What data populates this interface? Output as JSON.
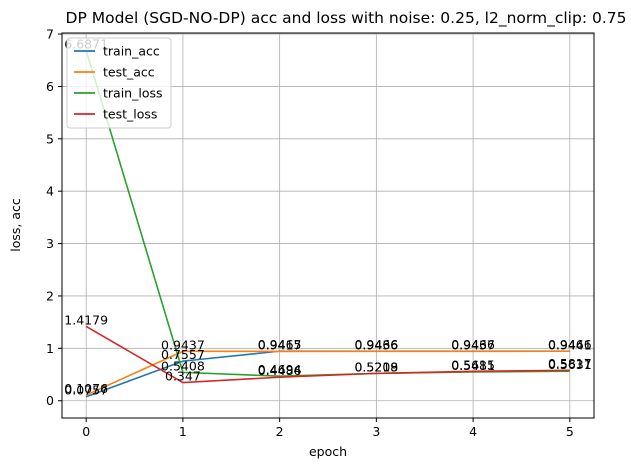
{
  "chart_data": {
    "type": "line",
    "title": "DP Model (SGD-NO-DP) acc and loss with noise: 0.25, l2_norm_clip: 0.75",
    "xlabel": "epoch",
    "ylabel": "loss, acc",
    "x": [
      0,
      1,
      2,
      3,
      4,
      5
    ],
    "xlim": [
      -0.25,
      5.25
    ],
    "ylim": [
      -0.33,
      7.02
    ],
    "xticks": [
      0,
      1,
      2,
      3,
      4,
      5
    ],
    "yticks": [
      0,
      1,
      2,
      3,
      4,
      5,
      6,
      7
    ],
    "grid": true,
    "legend_position": "top-left",
    "series": [
      {
        "name": "train_acc",
        "color": "#1f77b4",
        "values": [
          0.0757,
          0.7557,
          0.9465,
          0.9466,
          0.9466,
          0.9466
        ],
        "labels": [
          "0.0757",
          "0.7557",
          "0.9465",
          "0.9466",
          "0.9466",
          "0.9466"
        ]
      },
      {
        "name": "test_acc",
        "color": "#ff7f0e",
        "values": [
          0.1076,
          0.9437,
          0.9417,
          0.9436,
          0.9437,
          0.9441
        ],
        "labels": [
          "0.1076",
          "0.9437",
          "0.9417",
          "0.9436",
          "0.9437",
          "0.9441"
        ]
      },
      {
        "name": "train_loss",
        "color": "#2ca02c",
        "values": [
          6.6871,
          0.5408,
          0.4694,
          0.5209,
          0.5481,
          0.5631
        ],
        "labels": [
          "6.6871",
          "0.5408",
          "0.4694",
          "0.5209",
          "0.5481",
          "0.5631"
        ]
      },
      {
        "name": "test_loss",
        "color": "#d62728",
        "values": [
          1.4179,
          0.347,
          0.4486,
          0.5218,
          0.5615,
          0.5817
        ],
        "labels": [
          "1.4179",
          "0.347",
          "0.4486",
          "0.5218",
          "0.5615",
          "0.5817"
        ]
      }
    ]
  }
}
